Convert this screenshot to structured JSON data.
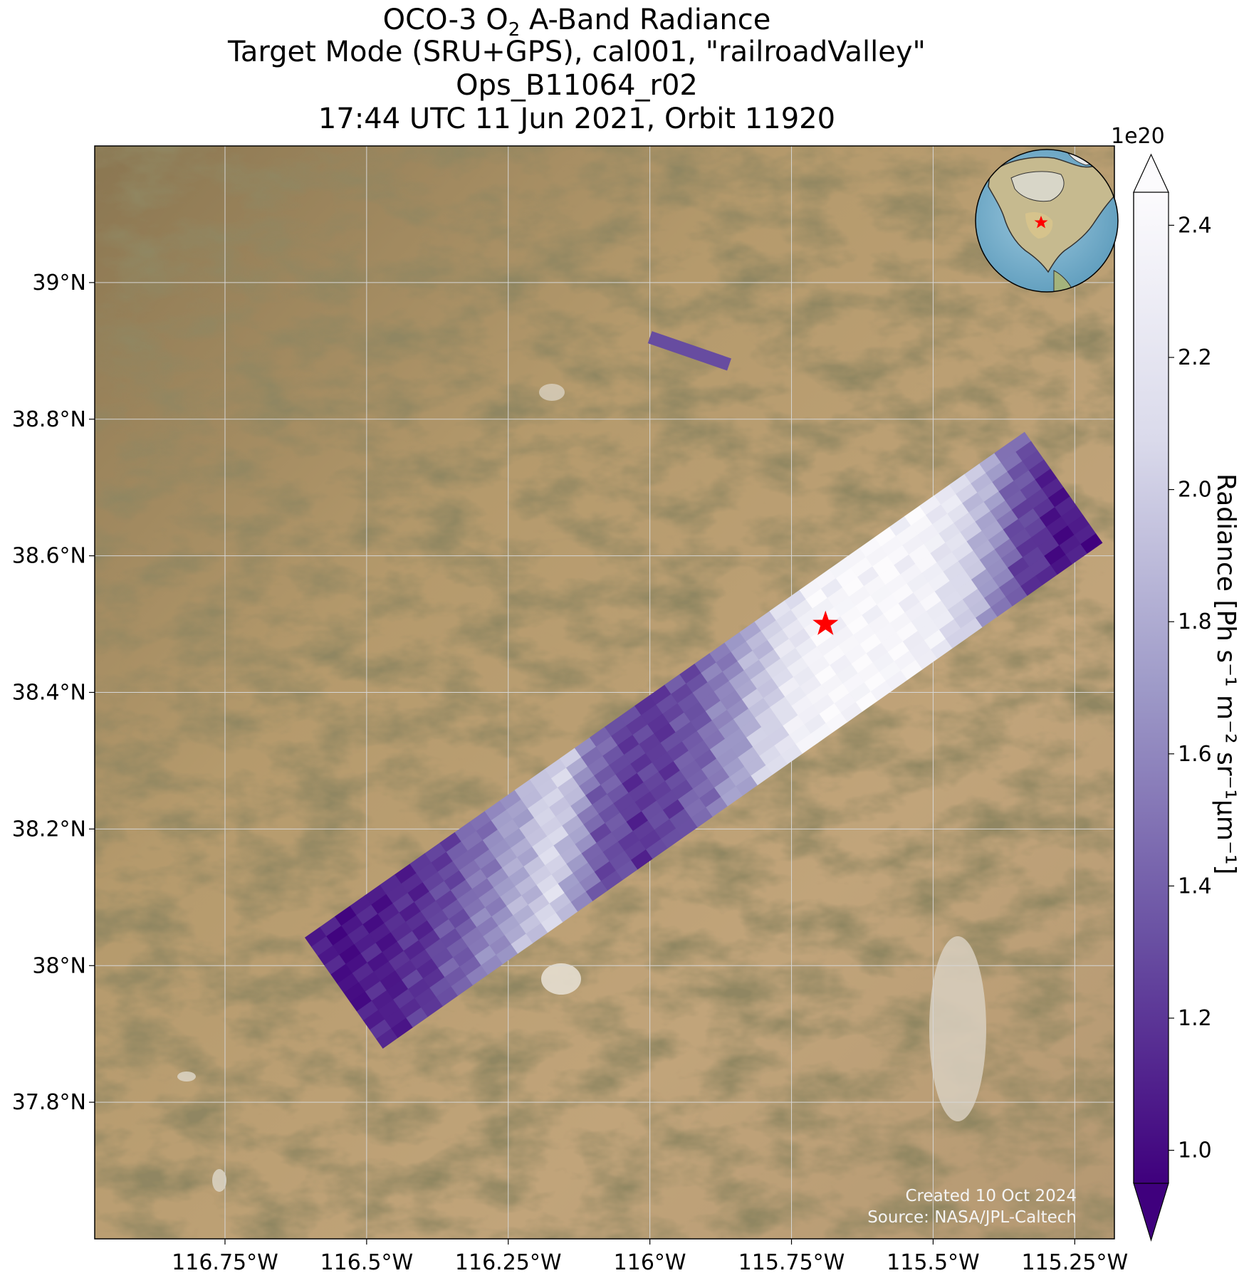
{
  "title": {
    "line1_prefix": "OCO-3 O",
    "line1_sub": "2",
    "line1_suffix": " A-Band Radiance",
    "line2": "Target Mode (SRU+GPS), cal001, \"railroadValley\"",
    "line3": "Ops_B11064_r02",
    "line4": "17:44 UTC 11 Jun 2021, Orbit 11920"
  },
  "map": {
    "lon_range": [
      -116.98,
      -115.18
    ],
    "lat_range": [
      37.6,
      39.2
    ],
    "x_ticks": [
      {
        "value": -116.75,
        "label": "116.75°W"
      },
      {
        "value": -116.5,
        "label": "116.5°W"
      },
      {
        "value": -116.25,
        "label": "116.25°W"
      },
      {
        "value": -116.0,
        "label": "116°W"
      },
      {
        "value": -115.75,
        "label": "115.75°W"
      },
      {
        "value": -115.5,
        "label": "115.5°W"
      },
      {
        "value": -115.25,
        "label": "115.25°W"
      }
    ],
    "y_ticks": [
      {
        "value": 37.8,
        "label": "37.8°N"
      },
      {
        "value": 38.0,
        "label": "38°N"
      },
      {
        "value": 38.2,
        "label": "38.2°N"
      },
      {
        "value": 38.4,
        "label": "38.4°N"
      },
      {
        "value": 38.6,
        "label": "38.6°N"
      },
      {
        "value": 38.8,
        "label": "38.8°N"
      },
      {
        "value": 39.0,
        "label": "39°N"
      }
    ],
    "target": {
      "name": "railroadValley",
      "lon": -115.69,
      "lat": 38.5
    },
    "grid": true,
    "background": "satellite imagery (desert)"
  },
  "colorbar": {
    "label": "Radiance [Ph s⁻¹ m⁻² sr⁻¹μm⁻¹]",
    "exponent": "1e20",
    "range": [
      0.95,
      2.45
    ],
    "ticks": [
      "1.0",
      "1.2",
      "1.4",
      "1.6",
      "1.8",
      "2.0",
      "2.2",
      "2.4"
    ],
    "tick_values": [
      1.0,
      1.2,
      1.4,
      1.6,
      1.8,
      2.0,
      2.2,
      2.4
    ],
    "colormap": "Purples_r",
    "extend": "both"
  },
  "credits": {
    "created": "Created 10 Oct 2024",
    "source": "Source: NASA/JPL-Caltech"
  },
  "colors": {
    "target_marker": "#ff0000",
    "cmap_low": "#3f007d",
    "cmap_high": "#fcfbfd"
  },
  "chart_data": {
    "type": "heatmap",
    "title": "OCO-3 O2 A-Band Radiance",
    "xlabel": "",
    "ylabel": "",
    "xlim": [
      -116.98,
      -115.18
    ],
    "ylim": [
      37.6,
      39.2
    ],
    "scale_factor": "1e20",
    "swath": {
      "start": {
        "lon": -116.54,
        "lat": 37.96
      },
      "end": {
        "lon": -115.27,
        "lat": 38.7
      },
      "profile_along_track": [
        1.05,
        1.1,
        1.2,
        1.45,
        1.75,
        2.1,
        1.4,
        1.2,
        1.3,
        1.6,
        2.0,
        2.35,
        2.4,
        2.4,
        2.3,
        1.9,
        1.3,
        1.05
      ]
    },
    "fragment": {
      "start": {
        "lon": -116.0,
        "lat": 38.92
      },
      "end": {
        "lon": -115.86,
        "lat": 38.88
      },
      "value": 1.3
    }
  }
}
